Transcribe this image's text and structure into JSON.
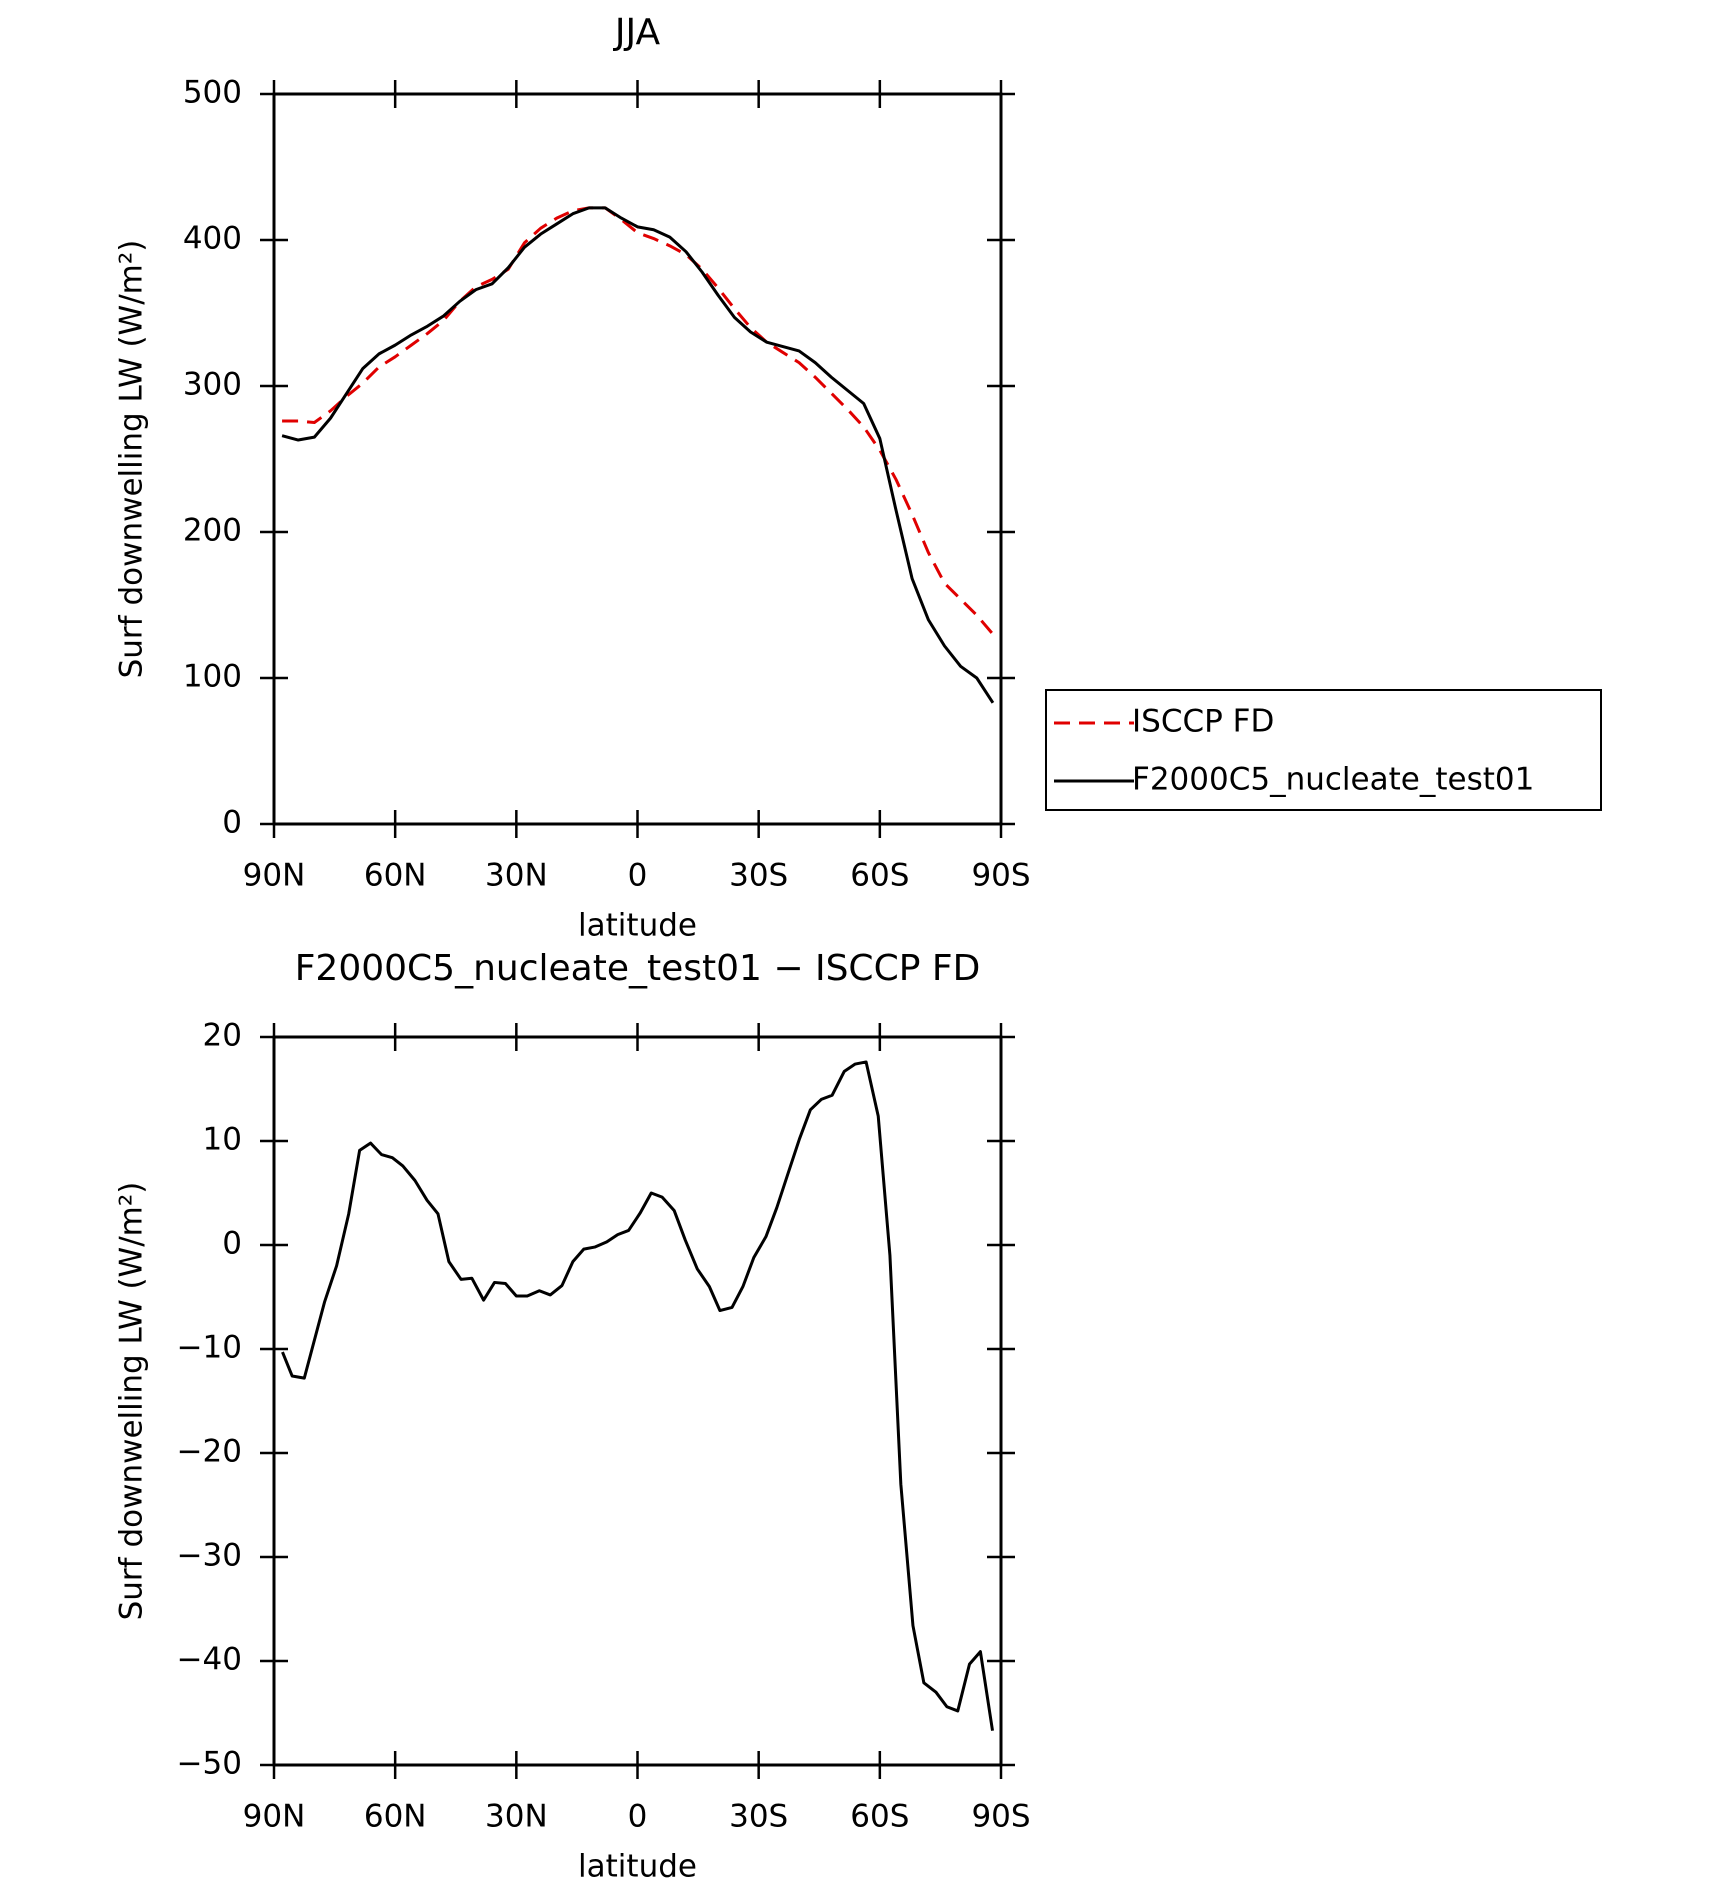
{
  "chart_data": [
    {
      "type": "line",
      "title": "JJA",
      "xlabel": "latitude",
      "ylabel": "Surf downwelling LW (W/m²)",
      "x": [
        88,
        84,
        80,
        76,
        72,
        68,
        64,
        60,
        56,
        52,
        48,
        44,
        40,
        36,
        32,
        28,
        24,
        20,
        16,
        12,
        8,
        4,
        0,
        -4,
        -8,
        -12,
        -16,
        -20,
        -24,
        -28,
        -32,
        -36,
        -40,
        -44,
        -48,
        -52,
        -56,
        -60,
        -64,
        -68,
        -72,
        -76,
        -80,
        -84,
        -88
      ],
      "series": [
        {
          "name": "ISCCP FD",
          "color": "#e00000",
          "style": "dashed",
          "values": [
            276,
            276,
            275,
            283,
            293,
            302,
            313,
            320,
            328,
            336,
            345,
            358,
            368,
            373,
            380,
            398,
            408,
            415,
            420,
            422,
            422,
            414,
            405,
            401,
            396,
            390,
            380,
            367,
            353,
            340,
            330,
            323,
            316,
            306,
            295,
            284,
            272,
            256,
            236,
            212,
            186,
            165,
            154,
            143,
            130
          ]
        },
        {
          "name": "F2000C5_nucleate_test01",
          "color": "#000000",
          "style": "solid",
          "values": [
            266,
            263,
            265,
            278,
            295,
            312,
            322,
            328,
            335,
            341,
            348,
            358,
            366,
            370,
            381,
            395,
            404,
            411,
            418,
            422,
            422,
            415,
            409,
            407,
            402,
            392,
            378,
            362,
            347,
            337,
            330,
            327,
            324,
            316,
            306,
            297,
            288,
            264,
            215,
            168,
            140,
            122,
            108,
            100,
            83
          ]
        }
      ],
      "xlim": [
        90,
        -90
      ],
      "xticks": [
        {
          "value": 90,
          "label": "90N"
        },
        {
          "value": 60,
          "label": "60N"
        },
        {
          "value": 30,
          "label": "30N"
        },
        0,
        {
          "value": -30,
          "label": "30S"
        },
        {
          "value": -60,
          "label": "60S"
        },
        {
          "value": -90,
          "label": "90S"
        }
      ],
      "ylim": [
        0,
        500
      ],
      "yticks": [
        0,
        100,
        200,
        300,
        400,
        500
      ],
      "legend": "outside-right"
    },
    {
      "type": "line",
      "title": "F2000C5_nucleate_test01 − ISCCP FD",
      "xlabel": "latitude",
      "ylabel": "Surf downwelling LW (W/m²)",
      "x": [
        87.9,
        85.5,
        82.5,
        77.5,
        74.5,
        71.5,
        68.8,
        66.1,
        63.4,
        60.7,
        58.1,
        55.1,
        52.1,
        49.4,
        46.7,
        43.7,
        41,
        38.1,
        35.4,
        32.7,
        30,
        27.3,
        24.3,
        21.6,
        18.7,
        16,
        13.3,
        10.6,
        7.6,
        4.9,
        2.2,
        -0.7,
        -3.4,
        -6.1,
        -9.1,
        -11.8,
        -14.8,
        -17.8,
        -20.4,
        -23.4,
        -26.1,
        -28.8,
        -31.8,
        -34.5,
        -37.2,
        -40.1,
        -42.8,
        -45.5,
        -48.2,
        -51.2,
        -53.9,
        -56.6,
        -59.6,
        -62.5,
        -65.2,
        -68.2,
        -70.9,
        -73.9,
        -76.6,
        -79.3,
        -82.2,
        -84.9,
        -87.9
      ],
      "series": [
        {
          "name": "F2000C5_nucleate_test01 − ISCCP FD",
          "color": "#000000",
          "style": "solid",
          "values": [
            -10.3,
            -12.6,
            -12.8,
            -5.5,
            -2,
            3,
            9.1,
            9.8,
            8.7,
            8.4,
            7.6,
            6.2,
            4.3,
            3,
            -1.6,
            -3.3,
            -3.2,
            -5.3,
            -3.6,
            -3.7,
            -4.9,
            -4.9,
            -4.4,
            -4.8,
            -3.9,
            -1.6,
            -0.4,
            -0.2,
            0.3,
            1,
            1.4,
            3.1,
            5,
            4.6,
            3.3,
            0.5,
            -2.3,
            -4,
            -6.3,
            -6,
            -4,
            -1.2,
            0.8,
            3.6,
            6.8,
            10.2,
            13,
            14,
            14.4,
            16.7,
            17.4,
            17.6,
            12.4,
            -1,
            -23,
            -36.6,
            -42.1,
            -43,
            -44.4,
            -44.8,
            -40.3,
            -39.1,
            -46.7
          ]
        }
      ],
      "xlim": [
        90,
        -90
      ],
      "xticks": [
        {
          "value": 90,
          "label": "90N"
        },
        {
          "value": 60,
          "label": "60N"
        },
        {
          "value": 30,
          "label": "30N"
        },
        0,
        {
          "value": -30,
          "label": "30S"
        },
        {
          "value": -60,
          "label": "60S"
        },
        {
          "value": -90,
          "label": "90S"
        }
      ],
      "ylim": [
        -50,
        20
      ],
      "yticks": [
        {
          "value": -50,
          "label": "−50"
        },
        {
          "value": -40,
          "label": "−40"
        },
        {
          "value": -30,
          "label": "−30"
        },
        {
          "value": -20,
          "label": "−20"
        },
        {
          "value": -10,
          "label": "−10"
        },
        0,
        10,
        20
      ]
    }
  ]
}
